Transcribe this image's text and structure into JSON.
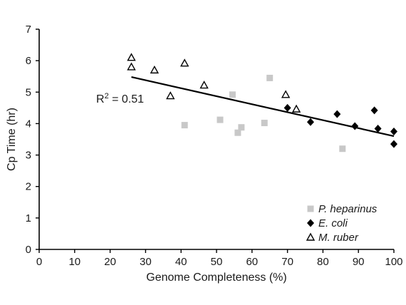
{
  "chart_data": {
    "type": "scatter",
    "title": "",
    "xlabel": "Genome Completeness (%)",
    "ylabel": "Cp Time (hr)",
    "xlim": [
      0,
      100
    ],
    "ylim": [
      0,
      7
    ],
    "xticks": [
      0,
      10,
      20,
      30,
      40,
      50,
      60,
      70,
      80,
      90,
      100
    ],
    "yticks": [
      0,
      1,
      2,
      3,
      4,
      5,
      6,
      7
    ],
    "grid": false,
    "legend_position": "bottom-right",
    "series": [
      {
        "name": "P. heparinus",
        "marker": "square",
        "color": "#c8c8c8",
        "points": [
          [
            41,
            3.95
          ],
          [
            51,
            4.12
          ],
          [
            54.5,
            4.92
          ],
          [
            56,
            3.71
          ],
          [
            57,
            3.88
          ],
          [
            63.5,
            4.02
          ],
          [
            65,
            5.45
          ],
          [
            85.5,
            3.2
          ]
        ]
      },
      {
        "name": "E. coli",
        "marker": "diamond",
        "color": "#000000",
        "points": [
          [
            70,
            4.5
          ],
          [
            76.5,
            4.05
          ],
          [
            84,
            4.3
          ],
          [
            89,
            3.92
          ],
          [
            94.5,
            4.42
          ],
          [
            95.5,
            3.84
          ],
          [
            100,
            3.75
          ],
          [
            100,
            3.35
          ]
        ]
      },
      {
        "name": "M. ruber",
        "marker": "triangle-open",
        "color": "#000000",
        "points": [
          [
            26,
            6.1
          ],
          [
            26,
            5.8
          ],
          [
            32.5,
            5.7
          ],
          [
            37,
            4.88
          ],
          [
            41,
            5.92
          ],
          [
            46.5,
            5.22
          ],
          [
            69.5,
            4.92
          ],
          [
            72.5,
            4.46
          ]
        ]
      }
    ],
    "trendline": {
      "type": "linear",
      "x_start": 26,
      "y_start": 5.48,
      "x_end": 100,
      "y_end": 3.6
    },
    "annotations": [
      {
        "text_base": "R",
        "text_sup": "2",
        "text_rest": " = 0.51"
      }
    ]
  }
}
